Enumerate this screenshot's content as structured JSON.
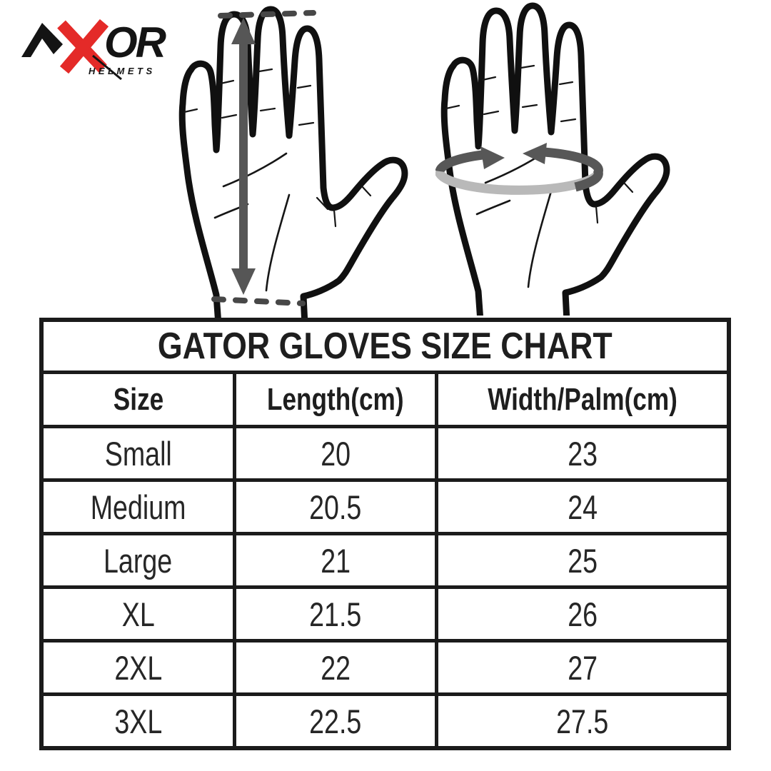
{
  "brand": {
    "name": "AXOR",
    "or_text": "OR",
    "tagline": "HELMETS",
    "accent_red": "#e42a28",
    "ink_black": "#141414"
  },
  "diagrams": {
    "length_hand": "palm with vertical double-headed arrow between dashed lines (glove length)",
    "width_hand": "palm with circumference band and opposing arrows (width/palm girth)",
    "arrow_gray": "#565656",
    "band_gray": "#b9b9b9",
    "dash_gray": "#474747"
  },
  "table": {
    "title": "GATOR GLOVES SIZE CHART",
    "columns": [
      "Size",
      "Length(cm)",
      "Width/Palm(cm)"
    ],
    "rows": [
      [
        "Small",
        "20",
        "23"
      ],
      [
        "Medium",
        "20.5",
        "24"
      ],
      [
        "Large",
        "21",
        "25"
      ],
      [
        "XL",
        "21.5",
        "26"
      ],
      [
        "2XL",
        "22",
        "27"
      ],
      [
        "3XL",
        "22.5",
        "27.5"
      ]
    ]
  },
  "chart_data": {
    "type": "table",
    "title": "GATOR GLOVES SIZE CHART",
    "columns": [
      "Size",
      "Length(cm)",
      "Width/Palm(cm)"
    ],
    "rows": [
      [
        "Small",
        "20",
        "23"
      ],
      [
        "Medium",
        "20.5",
        "24"
      ],
      [
        "Large",
        "21",
        "25"
      ],
      [
        "XL",
        "21.5",
        "26"
      ],
      [
        "2XL",
        "22",
        "27"
      ],
      [
        "3XL",
        "22.5",
        "27.5"
      ]
    ]
  },
  "colors": {
    "table_border": "#1b1b1b",
    "background": "#ffffff",
    "text": "#1e1e1e"
  }
}
